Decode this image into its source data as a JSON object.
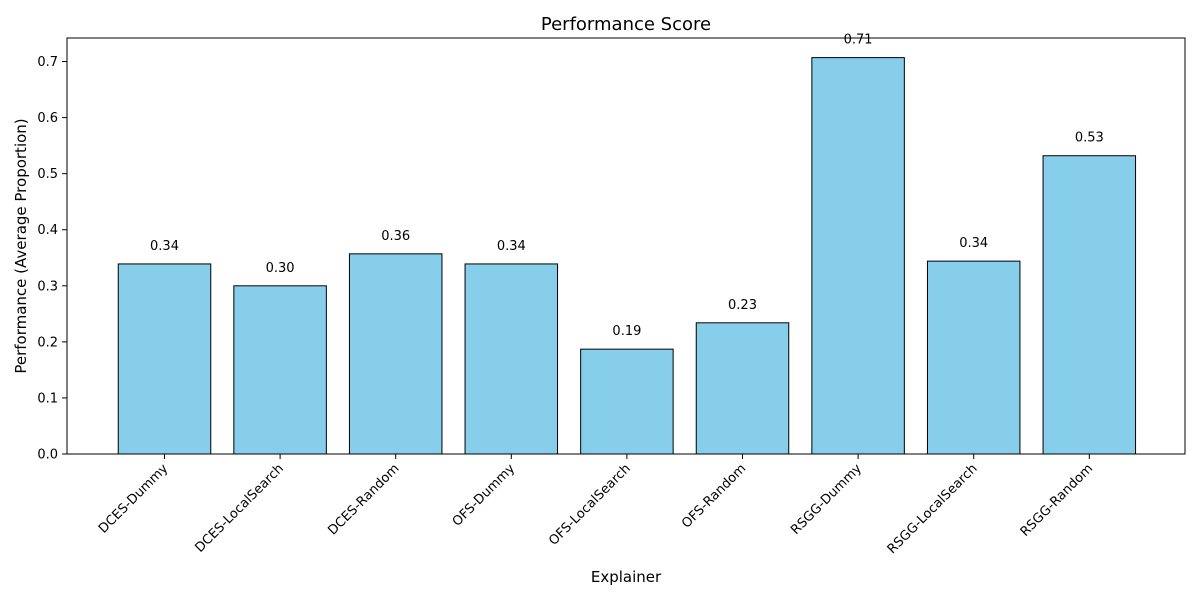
{
  "chart_data": {
    "type": "bar",
    "title": "Performance Score",
    "xlabel": "Explainer",
    "ylabel": "Performance (Average Proportion)",
    "categories": [
      "DCES-Dummy",
      "DCES-LocalSearch",
      "DCES-Random",
      "OFS-Dummy",
      "OFS-LocalSearch",
      "OFS-Random",
      "RSGG-Dummy",
      "RSGG-LocalSearch",
      "RSGG-Random"
    ],
    "values": [
      0.339,
      0.3,
      0.357,
      0.339,
      0.187,
      0.234,
      0.707,
      0.344,
      0.532
    ],
    "data_labels": [
      "0.34",
      "0.30",
      "0.36",
      "0.34",
      "0.19",
      "0.23",
      "0.71",
      "0.34",
      "0.53"
    ],
    "ylim": [
      0,
      0.742
    ],
    "yticks": [
      0.0,
      0.1,
      0.2,
      0.3,
      0.4,
      0.5,
      0.6,
      0.7
    ],
    "ytick_labels": [
      "0.0",
      "0.1",
      "0.2",
      "0.3",
      "0.4",
      "0.5",
      "0.6",
      "0.7"
    ],
    "bar_color": "#87CEEB",
    "edge_color": "#000000",
    "grid": false,
    "legend": "none"
  }
}
